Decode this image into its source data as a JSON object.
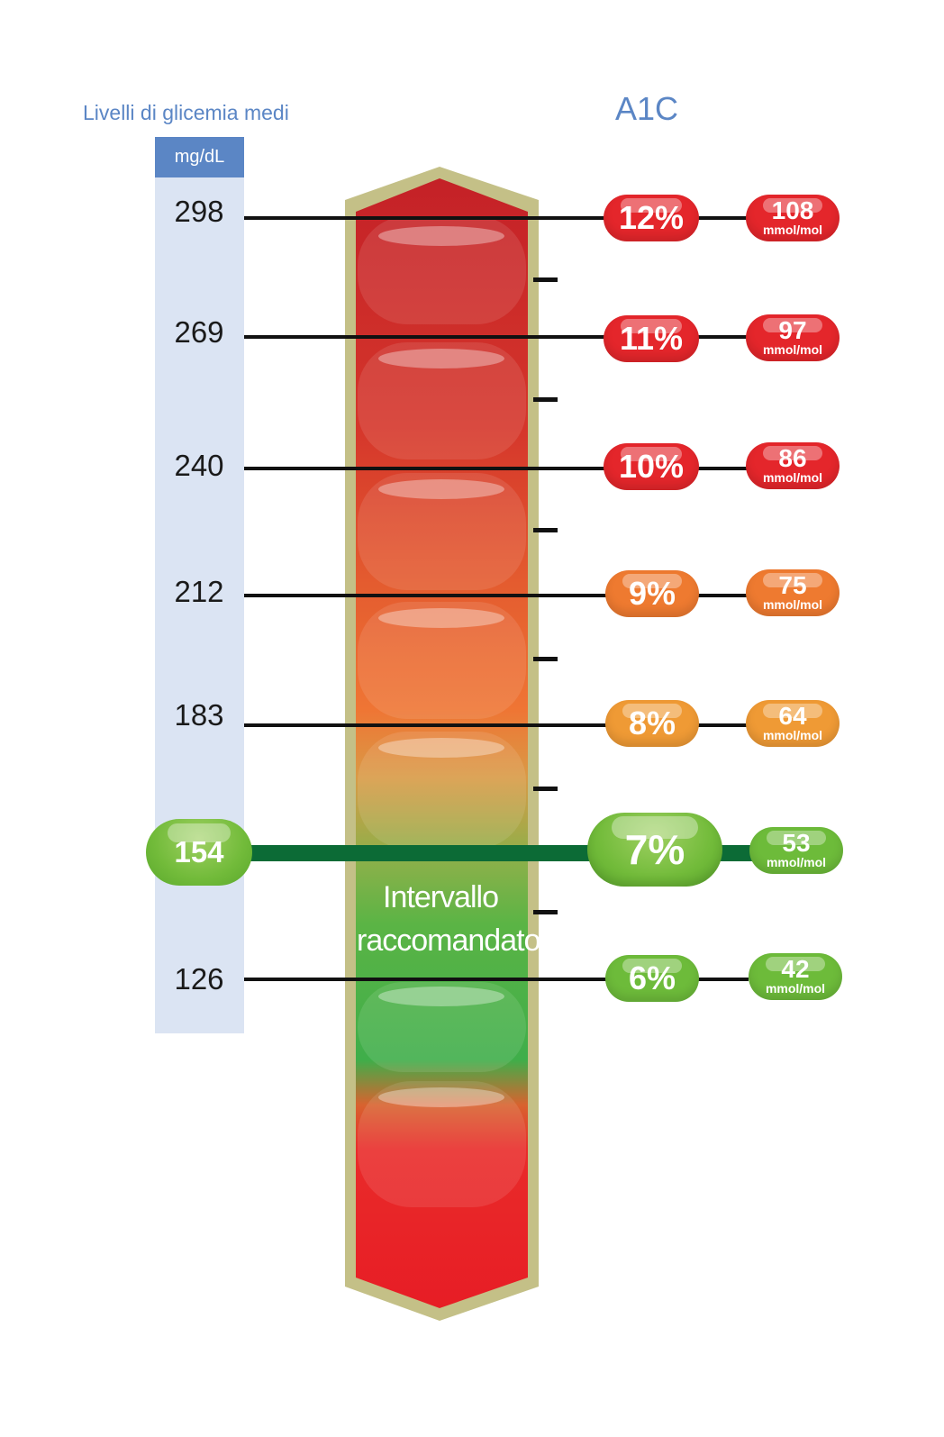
{
  "header": {
    "glycemia_title": "Livelli di glicemia medi",
    "a1c_title": "A1C",
    "unit": "mg/dL"
  },
  "scale_band_label": "Intervallo raccomandato",
  "colors": {
    "accent_blue": "#5b86c5",
    "column_fill": "#dbe4f3",
    "red": "#e4262b",
    "orange": "#ee7a30",
    "amber": "#ef9a35",
    "green": "#6dbb3a",
    "target_line": "#0c6b36"
  },
  "rows": [
    {
      "mg": "298",
      "pct": "12%",
      "mmol": "108",
      "mmol_unit": "mmol/mol",
      "color": "red"
    },
    {
      "mg": "269",
      "pct": "11%",
      "mmol": "97",
      "mmol_unit": "mmol/mol",
      "color": "red"
    },
    {
      "mg": "240",
      "pct": "10%",
      "mmol": "86",
      "mmol_unit": "mmol/mol",
      "color": "red"
    },
    {
      "mg": "212",
      "pct": "9%",
      "mmol": "75",
      "mmol_unit": "mmol/mol",
      "color": "orange"
    },
    {
      "mg": "183",
      "pct": "8%",
      "mmol": "64",
      "mmol_unit": "mmol/mol",
      "color": "amber"
    },
    {
      "mg": "154",
      "pct": "7%",
      "mmol": "53",
      "mmol_unit": "mmol/mol",
      "color": "green",
      "target": true
    },
    {
      "mg": "126",
      "pct": "6%",
      "mmol": "42",
      "mmol_unit": "mmol/mol",
      "color": "green"
    }
  ]
}
